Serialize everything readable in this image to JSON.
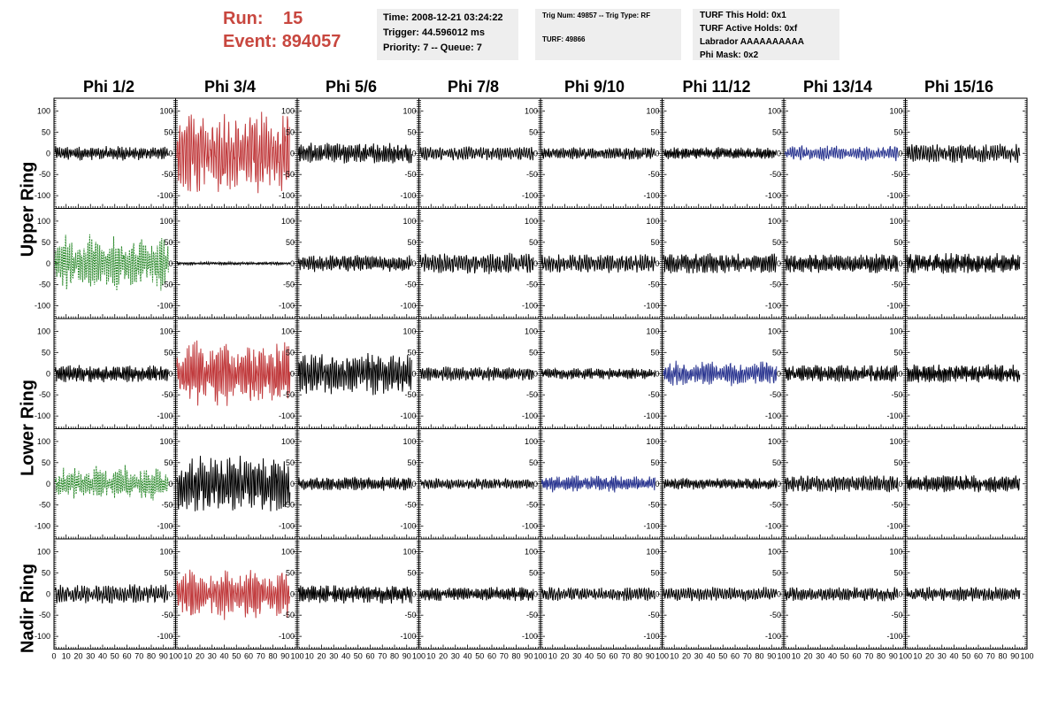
{
  "header": {
    "run_label": "Run:",
    "run_value": "15",
    "event_label": "Event:",
    "event_value": "894057"
  },
  "info_time": {
    "time": "Time: 2008-12-21 03:24:22",
    "trigger": "Trigger: 44.596012 ms",
    "priority": "Priority: 7 -- Queue: 7"
  },
  "info_trig": {
    "trig": "Trig Num: 49857 -- Trig Type: RF",
    "turf": "TURF: 49866"
  },
  "info_turf": {
    "hold": "TURF This Hold: 0x1",
    "active": "TURF Active Holds: 0xf",
    "labrador": "Labrador AAAAAAAAAA",
    "mask": "Phi Mask: 0x2"
  },
  "columns": [
    "Phi 1/2",
    "Phi 3/4",
    "Phi 5/6",
    "Phi 7/8",
    "Phi 9/10",
    "Phi 11/12",
    "Phi 13/14",
    "Phi 15/16"
  ],
  "rings": [
    {
      "label": "Upper Ring"
    },
    {
      "label": "Lower Ring"
    },
    {
      "label": "Nadir Ring"
    }
  ],
  "chart_data": {
    "type": "line",
    "xlim": [
      0,
      100
    ],
    "ylim": [
      -130,
      130
    ],
    "x_ticks": [
      "0",
      "10",
      "20",
      "30",
      "40",
      "50",
      "60",
      "70",
      "80",
      "90",
      "100"
    ],
    "y_ticks": [
      "100",
      "50",
      "0",
      "-50",
      "-100"
    ],
    "colors": {
      "normal": "#000000",
      "red": "#c0393b",
      "blue": "#2a3590",
      "green": "#2e8b2e"
    },
    "panels": [
      [
        "normal",
        "red",
        "normal",
        "normal",
        "normal",
        "normal",
        "blue",
        "normal"
      ],
      [
        "green",
        "normal",
        "normal",
        "normal",
        "normal",
        "normal",
        "normal",
        "normal"
      ],
      [
        "normal",
        "red",
        "normal",
        "normal",
        "normal",
        "blue",
        "normal",
        "normal"
      ],
      [
        "green",
        "normal",
        "normal",
        "normal",
        "blue",
        "normal",
        "normal",
        "normal"
      ],
      [
        "normal",
        "red",
        "normal",
        "normal",
        "normal",
        "normal",
        "normal",
        "normal"
      ]
    ],
    "amplitudes": [
      [
        15,
        95,
        22,
        15,
        13,
        13,
        18,
        20
      ],
      [
        60,
        3,
        18,
        22,
        20,
        22,
        20,
        22
      ],
      [
        18,
        75,
        45,
        15,
        12,
        28,
        18,
        20
      ],
      [
        40,
        60,
        15,
        12,
        20,
        12,
        18,
        18
      ],
      [
        20,
        55,
        20,
        15,
        15,
        15,
        15,
        15
      ]
    ]
  }
}
